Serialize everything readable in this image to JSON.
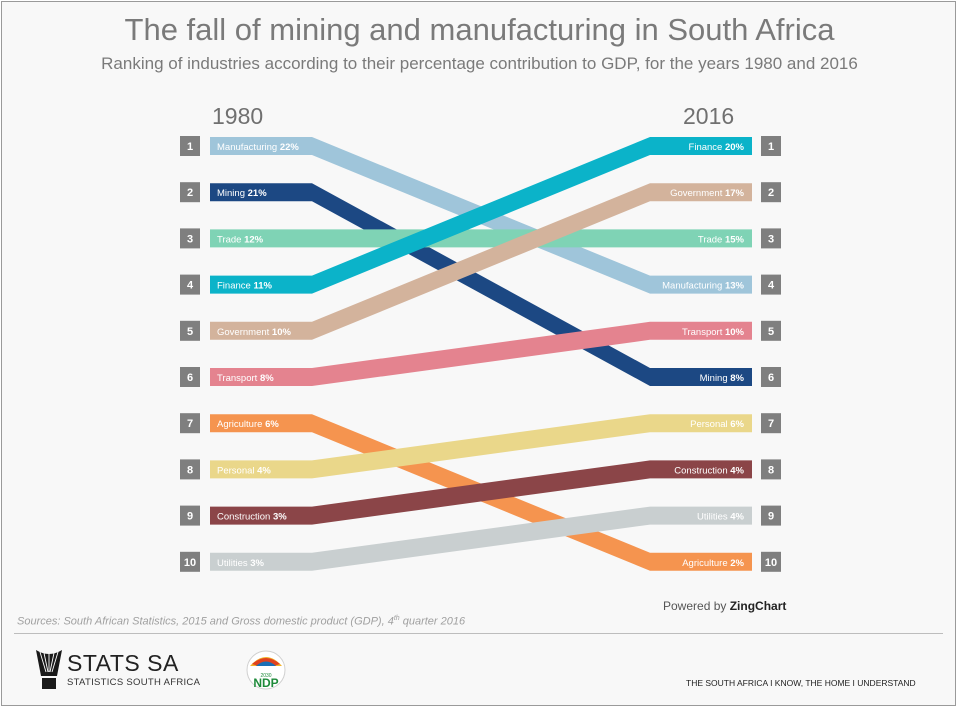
{
  "title": "The fall of mining and manufacturing in South Africa",
  "subtitle": "Ranking of industries according to their percentage contribution to GDP, for the years 1980 and 2016",
  "powered_by": {
    "prefix": "Powered by",
    "brand": "ZingChart"
  },
  "sources": {
    "text": "Sources: South African Statistics, 2015 and Gross domestic product (GDP), 4",
    "sup": "th",
    "suffix": " quarter 2016"
  },
  "footer": {
    "org_name": "STATS SA",
    "org_sub": "STATISTICS SOUTH AFRICA",
    "ndp_label": "NDP",
    "ndp_year": "2030",
    "tagline": "THE SOUTH AFRICA I KNOW, THE HOME I UNDERSTAND"
  },
  "chart_data": {
    "type": "slope",
    "x": [
      "1980",
      "2016"
    ],
    "ranks": [
      1,
      2,
      3,
      4,
      5,
      6,
      7,
      8,
      9,
      10
    ],
    "series": [
      {
        "name": "Manufacturing",
        "rank_1980": 1,
        "value_1980": 22,
        "rank_2016": 4,
        "value_2016": 13,
        "color": "#9fc5da"
      },
      {
        "name": "Mining",
        "rank_1980": 2,
        "value_1980": 21,
        "rank_2016": 6,
        "value_2016": 8,
        "color": "#1c4883"
      },
      {
        "name": "Trade",
        "rank_1980": 3,
        "value_1980": 12,
        "rank_2016": 3,
        "value_2016": 15,
        "color": "#7fd3b5"
      },
      {
        "name": "Finance",
        "rank_1980": 4,
        "value_1980": 11,
        "rank_2016": 1,
        "value_2016": 20,
        "color": "#0bb3c9"
      },
      {
        "name": "Government",
        "rank_1980": 5,
        "value_1980": 10,
        "rank_2016": 2,
        "value_2016": 17,
        "color": "#d3b39c"
      },
      {
        "name": "Transport",
        "rank_1980": 6,
        "value_1980": 8,
        "rank_2016": 5,
        "value_2016": 10,
        "color": "#e4838f"
      },
      {
        "name": "Agriculture",
        "rank_1980": 7,
        "value_1980": 6,
        "rank_2016": 10,
        "value_2016": 2,
        "color": "#f5944f"
      },
      {
        "name": "Personal",
        "rank_1980": 8,
        "value_1980": 4,
        "rank_2016": 7,
        "value_2016": 6,
        "color": "#ead78a"
      },
      {
        "name": "Construction",
        "rank_1980": 9,
        "value_1980": 3,
        "rank_2016": 8,
        "value_2016": 4,
        "color": "#8b4548"
      },
      {
        "name": "Utilities",
        "rank_1980": 10,
        "value_1980": 3,
        "rank_2016": 9,
        "value_2016": 4,
        "color": "#c9cfd0"
      }
    ]
  }
}
